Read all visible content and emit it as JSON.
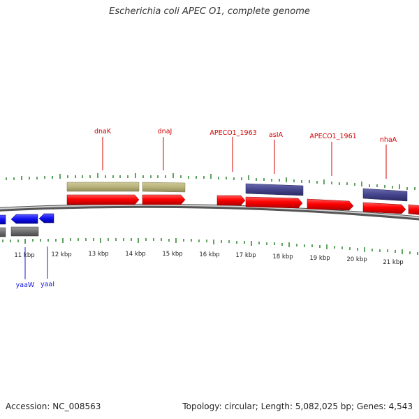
{
  "header": {
    "title": "Escherichia coli APEC O1, complete genome"
  },
  "footer": {
    "accession": "Accession: NC_008563",
    "summary": "Topology: circular; Length: 5,082,025 bp; Genes: 4,543"
  },
  "colors": {
    "cds": "#ff0000",
    "gene": "#b8b27a",
    "rna": "#44448c",
    "reverse_cds": "#1010f0",
    "reverse_gene": "#707070",
    "tick": "#1c7a1c",
    "backbone": "#808080"
  },
  "scale": {
    "labels": [
      "11 kbp",
      "12 kbp",
      "13 kbp",
      "14 kbp",
      "15 kbp",
      "16 kbp",
      "17 kbp",
      "18 kbp",
      "19 kbp",
      "20 kbp",
      "21 kbp"
    ]
  },
  "gene_labels": {
    "forward": [
      "dnaK",
      "dnaJ",
      "APECO1_1963",
      "asIA",
      "APECO1_1961",
      "nhaA"
    ],
    "reverse": [
      "yaaW",
      "yaaI"
    ]
  }
}
